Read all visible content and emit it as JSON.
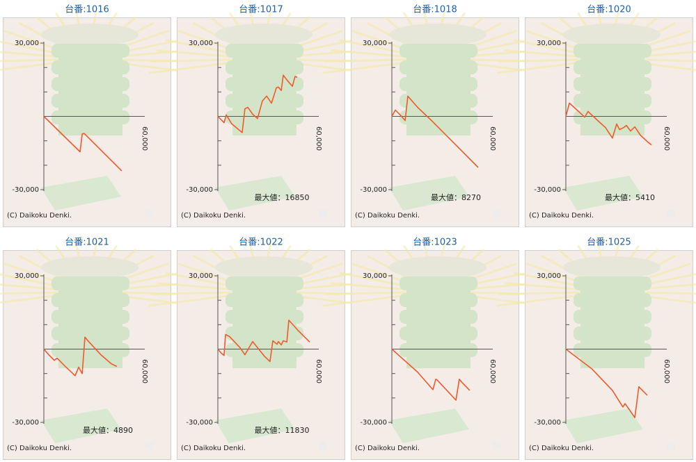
{
  "chart_data": [
    {
      "type": "line",
      "title": "台番:1016",
      "color": "#f05a2a",
      "xlim": [
        0,
        60000
      ],
      "ylim": [
        -30000,
        30000
      ],
      "xticks": [
        {
          "value": 60000,
          "label": "60,000"
        }
      ],
      "yticks": [
        {
          "value": 30000,
          "label": "30,000"
        },
        {
          "value": -30000,
          "label": "-30,000"
        }
      ],
      "minor_yticks": [
        20000,
        10000,
        -10000,
        -20000
      ],
      "x": [
        0,
        21500,
        22800,
        24000,
        46300
      ],
      "values": [
        0,
        -14500,
        -7200,
        -7000,
        -22300
      ],
      "credit": "(C) Daikoku Denki."
    },
    {
      "type": "line",
      "title": "台番:1017",
      "color": "#f05a2a",
      "xlim": [
        0,
        60000
      ],
      "ylim": [
        -30000,
        30000
      ],
      "xticks": [
        {
          "value": 60000,
          "label": "60,000"
        }
      ],
      "yticks": [
        {
          "value": 30000,
          "label": "30,000"
        },
        {
          "value": -30000,
          "label": "-30,000"
        }
      ],
      "minor_yticks": [
        20000,
        10000,
        -10000,
        -20000
      ],
      "x": [
        0,
        3700,
        5000,
        8300,
        14500,
        16100,
        17800,
        20700,
        23600,
        26500,
        29000,
        31900,
        34800,
        36000,
        37700,
        38900,
        41800,
        44300,
        45900,
        47200
      ],
      "values": [
        0,
        -2600,
        600,
        -3100,
        -6600,
        3100,
        3700,
        900,
        -900,
        6300,
        8300,
        5400,
        11700,
        12000,
        10600,
        16850,
        14300,
        12300,
        16300,
        16000
      ],
      "annotation": "最大値：16850",
      "credit": "(C) Daikoku Denki."
    },
    {
      "type": "line",
      "title": "台番:1018",
      "color": "#f05a2a",
      "xlim": [
        0,
        60000
      ],
      "ylim": [
        -30000,
        30000
      ],
      "xticks": [
        {
          "value": 60000,
          "label": "60,000"
        }
      ],
      "yticks": [
        {
          "value": 30000,
          "label": "30,000"
        },
        {
          "value": -30000,
          "label": "-30,000"
        }
      ],
      "minor_yticks": [
        20000,
        10000,
        -10000,
        -20000
      ],
      "x": [
        0,
        2100,
        5400,
        7900,
        9500,
        12000,
        15300,
        23600,
        36000,
        51300
      ],
      "values": [
        0,
        2600,
        300,
        -1700,
        8270,
        6300,
        3700,
        -1700,
        -10300,
        -20900
      ],
      "annotation": "最大値：8270",
      "credit": "(C) Daikoku Denki."
    },
    {
      "type": "line",
      "title": "台番:1020",
      "color": "#f05a2a",
      "xlim": [
        0,
        60000
      ],
      "ylim": [
        -30000,
        30000
      ],
      "xticks": [
        {
          "value": 60000,
          "label": "60,000"
        }
      ],
      "yticks": [
        {
          "value": 30000,
          "label": "30,000"
        },
        {
          "value": -30000,
          "label": "-30,000"
        }
      ],
      "minor_yticks": [
        20000,
        10000,
        -10000,
        -20000
      ],
      "x": [
        0,
        2100,
        5400,
        11200,
        13200,
        19400,
        23600,
        27700,
        30200,
        31900,
        34300,
        36000,
        38500,
        41000,
        44300,
        48400,
        50900
      ],
      "values": [
        0,
        5410,
        3400,
        -300,
        2000,
        -2000,
        -4600,
        -8900,
        -3100,
        -5400,
        -4600,
        -3700,
        -6000,
        -4300,
        -7700,
        -10300,
        -11700
      ],
      "annotation": "最大値：5410",
      "credit": "(C) Daikoku Denki."
    },
    {
      "type": "line",
      "title": "台番:1021",
      "color": "#f05a2a",
      "xlim": [
        0,
        60000
      ],
      "ylim": [
        -30000,
        30000
      ],
      "xticks": [
        {
          "value": 60000,
          "label": "60,000"
        }
      ],
      "yticks": [
        {
          "value": 30000,
          "label": "30,000"
        },
        {
          "value": -30000,
          "label": "-30,000"
        }
      ],
      "minor_yticks": [
        20000,
        10000,
        -10000,
        -20000
      ],
      "x": [
        0,
        2900,
        6200,
        7900,
        12000,
        18600,
        20700,
        22800,
        24400,
        26900,
        33900,
        40100,
        43400
      ],
      "values": [
        0,
        -2300,
        -4600,
        -3700,
        -6600,
        -10900,
        -7400,
        -10000,
        4890,
        2900,
        -2300,
        -6000,
        -7100
      ],
      "annotation": "最大値：4890",
      "credit": "(C) Daikoku Denki."
    },
    {
      "type": "line",
      "title": "台番:1022",
      "color": "#f05a2a",
      "xlim": [
        0,
        60000
      ],
      "ylim": [
        -30000,
        30000
      ],
      "xticks": [
        {
          "value": 60000,
          "label": "60,000"
        }
      ],
      "yticks": [
        {
          "value": 30000,
          "label": "30,000"
        },
        {
          "value": -30000,
          "label": "-30,000"
        }
      ],
      "minor_yticks": [
        20000,
        10000,
        -10000,
        -20000
      ],
      "x": [
        0,
        2100,
        3700,
        4600,
        7000,
        13200,
        16100,
        20700,
        23600,
        27700,
        31000,
        32700,
        35200,
        36000,
        37700,
        38900,
        41000,
        42200,
        47600,
        54600
      ],
      "values": [
        0,
        -1700,
        -2600,
        6000,
        5100,
        600,
        -2300,
        3100,
        600,
        -2900,
        -5100,
        3400,
        2000,
        3100,
        1700,
        3400,
        2900,
        11830,
        7700,
        2900
      ],
      "annotation": "最大値：11830",
      "credit": "(C) Daikoku Denki."
    },
    {
      "type": "line",
      "title": "台番:1023",
      "color": "#f05a2a",
      "xlim": [
        0,
        60000
      ],
      "ylim": [
        -30000,
        30000
      ],
      "xticks": [
        {
          "value": 60000,
          "label": "60,000"
        }
      ],
      "yticks": [
        {
          "value": 30000,
          "label": "30,000"
        },
        {
          "value": -30000,
          "label": "-30,000"
        }
      ],
      "minor_yticks": [
        20000,
        10000,
        -10000,
        -20000
      ],
      "x": [
        0,
        15300,
        24400,
        26100,
        26900,
        38100,
        40100,
        41800,
        46300
      ],
      "values": [
        0,
        -9400,
        -16600,
        -12300,
        -12600,
        -20900,
        -12300,
        -13700,
        -16900
      ],
      "credit": "(C) Daikoku Denki."
    },
    {
      "type": "line",
      "title": "台番:1025",
      "color": "#f05a2a",
      "xlim": [
        0,
        60000
      ],
      "ylim": [
        -30000,
        30000
      ],
      "xticks": [
        {
          "value": 60000,
          "label": "60,000"
        }
      ],
      "yticks": [
        {
          "value": 30000,
          "label": "30,000"
        },
        {
          "value": -30000,
          "label": "-30,000"
        }
      ],
      "minor_yticks": [
        20000,
        10000,
        -10000,
        -20000
      ],
      "x": [
        0,
        15300,
        27700,
        33900,
        35200,
        41000,
        43400,
        45100,
        48400
      ],
      "values": [
        0,
        -8000,
        -16900,
        -23700,
        -22300,
        -28000,
        -15400,
        -16600,
        -18900
      ],
      "credit": "(C) Daikoku Denki."
    }
  ]
}
